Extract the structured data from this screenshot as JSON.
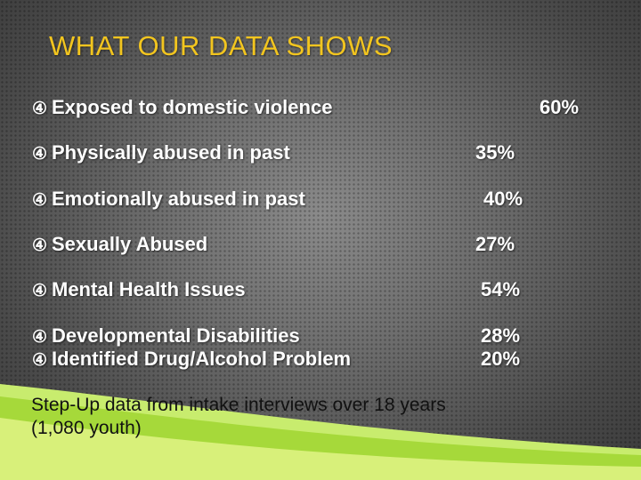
{
  "slide": {
    "title": "WHAT OUR DATA SHOWS",
    "bullet_glyph": "④",
    "items": [
      {
        "label": "Exposed to domestic violence",
        "value": "60%"
      },
      {
        "label": "Physically abused in past",
        "value": "35%"
      },
      {
        "label": "Emotionally abused in past",
        "value": "40%"
      },
      {
        "label": "Sexually Abused",
        "value": "27%"
      },
      {
        "label": "Mental Health Issues",
        "value": "54%"
      },
      {
        "label": "Developmental Disabilities",
        "value": "28%"
      },
      {
        "label": "Identified Drug/Alcohol Problem",
        "value": "20%"
      }
    ],
    "footnote_line1": "Step-Up data from intake interviews over 18 years",
    "footnote_line2": "(1,080 youth)",
    "colors": {
      "title": "#f2c51f",
      "text": "#ffffff",
      "swoosh": "#a6d93a"
    }
  }
}
